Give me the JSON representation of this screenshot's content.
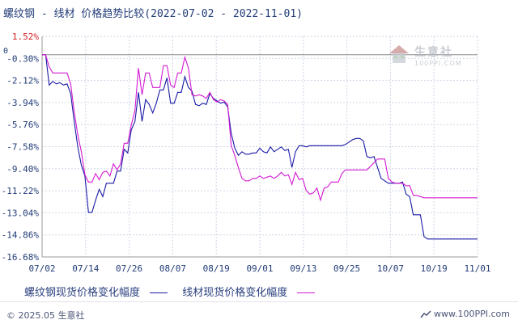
{
  "title": "螺纹钢 - 线材 价格趋势比较(2022-07-02 - 2022-11-01)",
  "watermark": {
    "name": "生意社",
    "domain": "100PPI.COM"
  },
  "footer": {
    "copyright": "© 2025.05 生意社",
    "site": "www.100PPI.com"
  },
  "colors": {
    "series1": "#1a1aa6",
    "series2": "#d21ad2",
    "axis": "#999999",
    "grid": "#cfd6e6",
    "tick_text": "#223c78",
    "top_label": "#d42020",
    "zero_line": "#888888"
  },
  "chart_data": {
    "type": "line",
    "title": "螺纹钢 - 线材 价格趋势比较(2022-07-02 - 2022-11-01)",
    "x_ticks": [
      "07/02",
      "07/14",
      "07/26",
      "08/07",
      "08/19",
      "09/01",
      "09/13",
      "09/25",
      "10/07",
      "10/19",
      "11/01"
    ],
    "y_ticks": [
      "1.52%",
      "-0.30%",
      "-2.12%",
      "-3.94%",
      "-5.76%",
      "-7.58%",
      "-9.40%",
      "-11.22%",
      "-13.04%",
      "-14.86%",
      "-16.68%"
    ],
    "y_tick_values": [
      1.52,
      -0.3,
      -2.12,
      -3.94,
      -5.76,
      -7.58,
      -9.4,
      -11.22,
      -13.04,
      -14.86,
      -16.68
    ],
    "ylim": [
      -16.68,
      1.52
    ],
    "x_range": [
      "07/02",
      "11/01"
    ],
    "zero_marker": "0",
    "grid": true,
    "legend_position": "bottom",
    "series": [
      {
        "name": "螺纹钢现货价格变化幅度",
        "x": [
          "07/02",
          "07/03",
          "07/04",
          "07/05",
          "07/06",
          "07/07",
          "07/08",
          "07/09",
          "07/10",
          "07/11",
          "07/12",
          "07/13",
          "07/14",
          "07/15",
          "07/16",
          "07/17",
          "07/18",
          "07/19",
          "07/20",
          "07/21",
          "07/22",
          "07/23",
          "07/24",
          "07/25",
          "07/26",
          "07/27",
          "07/28",
          "07/29",
          "07/30",
          "07/31",
          "08/01",
          "08/02",
          "08/03",
          "08/04",
          "08/05",
          "08/06",
          "08/07",
          "08/08",
          "08/09",
          "08/10",
          "08/11",
          "08/12",
          "08/13",
          "08/14",
          "08/15",
          "08/16",
          "08/17",
          "08/18",
          "08/19",
          "08/20",
          "08/21",
          "08/22",
          "08/23",
          "08/24",
          "08/25",
          "08/26",
          "08/27",
          "08/28",
          "08/29",
          "08/30",
          "08/31",
          "09/01",
          "09/02",
          "09/03",
          "09/04",
          "09/05",
          "09/06",
          "09/07",
          "09/08",
          "09/09",
          "09/10",
          "09/11",
          "09/12",
          "09/13",
          "09/14",
          "09/15",
          "09/16",
          "09/17",
          "09/18",
          "09/19",
          "09/20",
          "09/21",
          "09/22",
          "09/23",
          "09/24",
          "09/25",
          "09/26",
          "09/27",
          "09/28",
          "09/29",
          "09/30",
          "10/01",
          "10/02",
          "10/03",
          "10/04",
          "10/05",
          "10/06",
          "10/07",
          "10/08",
          "10/09",
          "10/10",
          "10/11",
          "10/12",
          "10/13",
          "10/14",
          "10/15",
          "10/16",
          "10/17",
          "10/18",
          "10/19",
          "10/20",
          "10/21",
          "10/22",
          "10/23",
          "10/24",
          "10/25",
          "10/26",
          "10/27",
          "10/28",
          "10/29",
          "10/30",
          "10/31",
          "11/01"
        ],
        "values": [
          0.0,
          0.0,
          -2.5,
          -2.2,
          -2.4,
          -2.3,
          -2.5,
          -2.4,
          -3.2,
          -5.5,
          -7.6,
          -9.1,
          -10.0,
          -13.0,
          -13.0,
          -12.0,
          -11.1,
          -11.7,
          -10.6,
          -10.6,
          -10.6,
          -9.6,
          -9.6,
          -7.8,
          -8.1,
          -6.2,
          -5.5,
          -3.1,
          -5.5,
          -3.7,
          -4.1,
          -4.8,
          -4.0,
          -2.9,
          -2.9,
          -1.9,
          -4.0,
          -4.0,
          -3.1,
          -3.1,
          -1.8,
          -2.7,
          -3.0,
          -4.1,
          -4.2,
          -4.0,
          -4.1,
          -3.2,
          -3.6,
          -3.8,
          -4.0,
          -3.9,
          -4.3,
          -6.5,
          -7.7,
          -8.3,
          -8.0,
          -8.2,
          -8.2,
          -8.1,
          -8.1,
          -7.7,
          -8.0,
          -8.1,
          -7.6,
          -8.0,
          -7.8,
          -7.6,
          -7.9,
          -7.8,
          -9.3,
          -8.0,
          -7.5,
          -7.5,
          -7.6,
          -7.5,
          -7.5,
          -7.5,
          -7.5,
          -7.5,
          -7.5,
          -7.5,
          -7.5,
          -7.5,
          -7.5,
          -7.4,
          -7.2,
          -7.0,
          -6.9,
          -6.9,
          -7.1,
          -8.4,
          -8.5,
          -8.4,
          -9.3,
          -10.2,
          -10.4,
          -10.6,
          -10.6,
          -10.6,
          -10.6,
          -10.5,
          -11.5,
          -11.7,
          -13.2,
          -13.2,
          -13.2,
          -15.0,
          -15.2,
          -15.2,
          -15.2,
          -15.2,
          -15.2,
          -15.2,
          -15.2,
          -15.2,
          -15.2,
          -15.2,
          -15.2,
          -15.2,
          -15.2,
          -15.2,
          -15.2
        ],
        "color": "#1a1aa6"
      },
      {
        "name": "线材现货价格变化幅度",
        "x": [
          "07/02",
          "07/03",
          "07/04",
          "07/05",
          "07/06",
          "07/07",
          "07/08",
          "07/09",
          "07/10",
          "07/11",
          "07/12",
          "07/13",
          "07/14",
          "07/15",
          "07/16",
          "07/17",
          "07/18",
          "07/19",
          "07/20",
          "07/21",
          "07/22",
          "07/23",
          "07/24",
          "07/25",
          "07/26",
          "07/27",
          "07/28",
          "07/29",
          "07/30",
          "07/31",
          "08/01",
          "08/02",
          "08/03",
          "08/04",
          "08/05",
          "08/06",
          "08/07",
          "08/08",
          "08/09",
          "08/10",
          "08/11",
          "08/12",
          "08/13",
          "08/14",
          "08/15",
          "08/16",
          "08/17",
          "08/18",
          "08/19",
          "08/20",
          "08/21",
          "08/22",
          "08/23",
          "08/24",
          "08/25",
          "08/26",
          "08/27",
          "08/28",
          "08/29",
          "08/30",
          "08/31",
          "09/01",
          "09/02",
          "09/03",
          "09/04",
          "09/05",
          "09/06",
          "09/07",
          "09/08",
          "09/09",
          "09/10",
          "09/11",
          "09/12",
          "09/13",
          "09/14",
          "09/15",
          "09/16",
          "09/17",
          "09/18",
          "09/19",
          "09/20",
          "09/21",
          "09/22",
          "09/23",
          "09/24",
          "09/25",
          "09/26",
          "09/27",
          "09/28",
          "09/29",
          "09/30",
          "10/01",
          "10/02",
          "10/03",
          "10/04",
          "10/05",
          "10/06",
          "10/07",
          "10/08",
          "10/09",
          "10/10",
          "10/11",
          "10/12",
          "10/13",
          "10/14",
          "10/15",
          "10/16",
          "10/17",
          "10/18",
          "10/19",
          "10/20",
          "10/21",
          "10/22",
          "10/23",
          "10/24",
          "10/25",
          "10/26",
          "10/27",
          "10/28",
          "10/29",
          "10/30",
          "10/31",
          "11/01"
        ],
        "values": [
          0.0,
          0.0,
          -1.0,
          -1.5,
          -1.5,
          -1.5,
          -1.5,
          -1.5,
          -2.4,
          -4.7,
          -6.6,
          -8.0,
          -9.9,
          -10.5,
          -10.5,
          -9.8,
          -10.3,
          -9.7,
          -9.6,
          -10.0,
          -9.0,
          -9.5,
          -9.0,
          -7.3,
          -7.3,
          -5.8,
          -4.6,
          -1.1,
          -3.3,
          -1.5,
          -1.5,
          -2.7,
          -2.7,
          -2.7,
          -0.9,
          -0.9,
          -2.5,
          -2.7,
          -1.5,
          -1.5,
          -0.2,
          -1.1,
          -3.3,
          -3.4,
          -3.3,
          -3.4,
          -3.6,
          -3.1,
          -3.7,
          -3.9,
          -3.7,
          -3.8,
          -4.1,
          -7.5,
          -8.3,
          -9.3,
          -10.2,
          -10.4,
          -10.4,
          -10.2,
          -10.2,
          -10.0,
          -10.2,
          -10.1,
          -10.0,
          -10.2,
          -10.0,
          -9.7,
          -10.0,
          -9.9,
          -10.7,
          -9.7,
          -10.3,
          -10.2,
          -11.2,
          -11.5,
          -11.4,
          -11.0,
          -12.0,
          -11.0,
          -10.9,
          -10.5,
          -10.5,
          -10.5,
          -9.8,
          -9.5,
          -9.5,
          -9.5,
          -9.5,
          -9.5,
          -9.5,
          -9.5,
          -9.2,
          -8.9,
          -8.6,
          -8.6,
          -8.6,
          -10.2,
          -10.5,
          -10.6,
          -10.6,
          -10.6,
          -10.8,
          -10.8,
          -11.6,
          -11.6,
          -11.7,
          -11.8,
          -11.8,
          -11.8,
          -11.8,
          -11.8,
          -11.8,
          -11.8,
          -11.8,
          -11.8,
          -11.8,
          -11.8,
          -11.8,
          -11.8,
          -11.8,
          -11.8,
          -11.8
        ],
        "color": "#d21ad2"
      }
    ]
  }
}
